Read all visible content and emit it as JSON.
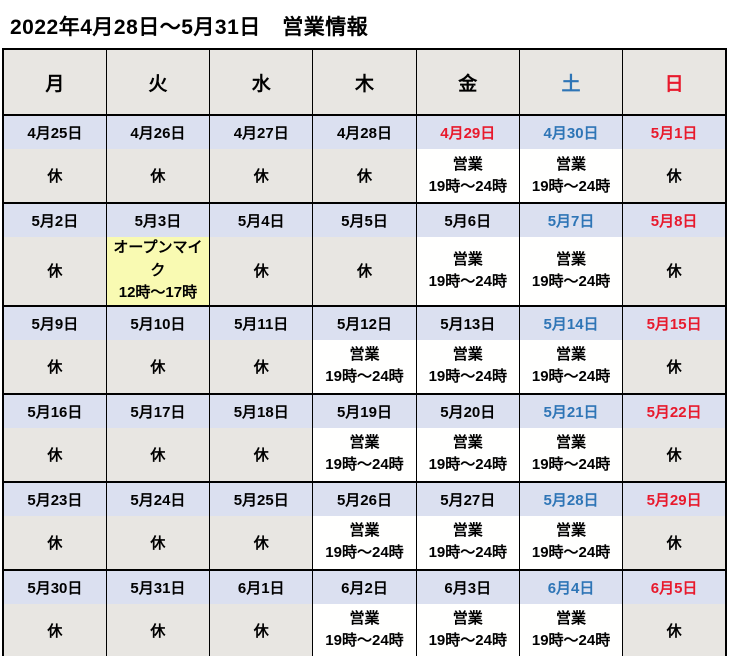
{
  "title": "2022年4月28日～5月31日　営業情報",
  "colors": {
    "saturday": "#2e75b6",
    "sunday": "#e8192c",
    "weekday": "#000000",
    "header_bg": "#e8e6e2",
    "date_bg": "#dbe0f0",
    "closed_bg": "#e8e6e2",
    "open_bg": "#fffffe",
    "event_bg": "#f9fab2"
  },
  "weekday_header": [
    {
      "label": "月",
      "color": "black"
    },
    {
      "label": "火",
      "color": "black"
    },
    {
      "label": "水",
      "color": "black"
    },
    {
      "label": "木",
      "color": "black"
    },
    {
      "label": "金",
      "color": "black"
    },
    {
      "label": "土",
      "color": "blue"
    },
    {
      "label": "日",
      "color": "red"
    }
  ],
  "status_legend": {
    "closed": "休",
    "open": "営業 19時～24時",
    "event": "オープンマイク 12時～17時"
  },
  "weeks": [
    {
      "days": [
        {
          "date": "4月25日",
          "date_color": "black",
          "status": "closed",
          "lines": [
            "休"
          ]
        },
        {
          "date": "4月26日",
          "date_color": "black",
          "status": "closed",
          "lines": [
            "休"
          ]
        },
        {
          "date": "4月27日",
          "date_color": "black",
          "status": "closed",
          "lines": [
            "休"
          ]
        },
        {
          "date": "4月28日",
          "date_color": "black",
          "status": "closed",
          "lines": [
            "休"
          ]
        },
        {
          "date": "4月29日",
          "date_color": "red",
          "status": "open",
          "lines": [
            "営業",
            "19時～24時"
          ]
        },
        {
          "date": "4月30日",
          "date_color": "blue",
          "status": "open",
          "lines": [
            "営業",
            "19時～24時"
          ]
        },
        {
          "date": "5月1日",
          "date_color": "red",
          "status": "closed",
          "lines": [
            "休"
          ]
        }
      ]
    },
    {
      "days": [
        {
          "date": "5月2日",
          "date_color": "black",
          "status": "closed",
          "lines": [
            "休"
          ]
        },
        {
          "date": "5月3日",
          "date_color": "black",
          "status": "event",
          "lines": [
            "オープンマイク",
            "12時～17時"
          ]
        },
        {
          "date": "5月4日",
          "date_color": "black",
          "status": "closed",
          "lines": [
            "休"
          ]
        },
        {
          "date": "5月5日",
          "date_color": "black",
          "status": "closed",
          "lines": [
            "休"
          ]
        },
        {
          "date": "5月6日",
          "date_color": "black",
          "status": "open",
          "lines": [
            "営業",
            "19時～24時"
          ]
        },
        {
          "date": "5月7日",
          "date_color": "blue",
          "status": "open",
          "lines": [
            "営業",
            "19時～24時"
          ]
        },
        {
          "date": "5月8日",
          "date_color": "red",
          "status": "closed",
          "lines": [
            "休"
          ]
        }
      ]
    },
    {
      "days": [
        {
          "date": "5月9日",
          "date_color": "black",
          "status": "closed",
          "lines": [
            "休"
          ]
        },
        {
          "date": "5月10日",
          "date_color": "black",
          "status": "closed",
          "lines": [
            "休"
          ]
        },
        {
          "date": "5月11日",
          "date_color": "black",
          "status": "closed",
          "lines": [
            "休"
          ]
        },
        {
          "date": "5月12日",
          "date_color": "black",
          "status": "open",
          "lines": [
            "営業",
            "19時～24時"
          ]
        },
        {
          "date": "5月13日",
          "date_color": "black",
          "status": "open",
          "lines": [
            "営業",
            "19時～24時"
          ]
        },
        {
          "date": "5月14日",
          "date_color": "blue",
          "status": "open",
          "lines": [
            "営業",
            "19時～24時"
          ]
        },
        {
          "date": "5月15日",
          "date_color": "red",
          "status": "closed",
          "lines": [
            "休"
          ]
        }
      ]
    },
    {
      "days": [
        {
          "date": "5月16日",
          "date_color": "black",
          "status": "closed",
          "lines": [
            "休"
          ]
        },
        {
          "date": "5月17日",
          "date_color": "black",
          "status": "closed",
          "lines": [
            "休"
          ]
        },
        {
          "date": "5月18日",
          "date_color": "black",
          "status": "closed",
          "lines": [
            "休"
          ]
        },
        {
          "date": "5月19日",
          "date_color": "black",
          "status": "open",
          "lines": [
            "営業",
            "19時～24時"
          ]
        },
        {
          "date": "5月20日",
          "date_color": "black",
          "status": "open",
          "lines": [
            "営業",
            "19時～24時"
          ]
        },
        {
          "date": "5月21日",
          "date_color": "blue",
          "status": "open",
          "lines": [
            "営業",
            "19時～24時"
          ]
        },
        {
          "date": "5月22日",
          "date_color": "red",
          "status": "closed",
          "lines": [
            "休"
          ]
        }
      ]
    },
    {
      "days": [
        {
          "date": "5月23日",
          "date_color": "black",
          "status": "closed",
          "lines": [
            "休"
          ]
        },
        {
          "date": "5月24日",
          "date_color": "black",
          "status": "closed",
          "lines": [
            "休"
          ]
        },
        {
          "date": "5月25日",
          "date_color": "black",
          "status": "closed",
          "lines": [
            "休"
          ]
        },
        {
          "date": "5月26日",
          "date_color": "black",
          "status": "open",
          "lines": [
            "営業",
            "19時～24時"
          ]
        },
        {
          "date": "5月27日",
          "date_color": "black",
          "status": "open",
          "lines": [
            "営業",
            "19時～24時"
          ]
        },
        {
          "date": "5月28日",
          "date_color": "blue",
          "status": "open",
          "lines": [
            "営業",
            "19時～24時"
          ]
        },
        {
          "date": "5月29日",
          "date_color": "red",
          "status": "closed",
          "lines": [
            "休"
          ]
        }
      ]
    },
    {
      "days": [
        {
          "date": "5月30日",
          "date_color": "black",
          "status": "closed",
          "lines": [
            "休"
          ]
        },
        {
          "date": "5月31日",
          "date_color": "black",
          "status": "closed",
          "lines": [
            "休"
          ]
        },
        {
          "date": "6月1日",
          "date_color": "black",
          "status": "closed",
          "lines": [
            "休"
          ]
        },
        {
          "date": "6月2日",
          "date_color": "black",
          "status": "open",
          "lines": [
            "営業",
            "19時～24時"
          ]
        },
        {
          "date": "6月3日",
          "date_color": "black",
          "status": "open",
          "lines": [
            "営業",
            "19時～24時"
          ]
        },
        {
          "date": "6月4日",
          "date_color": "blue",
          "status": "open",
          "lines": [
            "営業",
            "19時～24時"
          ]
        },
        {
          "date": "6月5日",
          "date_color": "red",
          "status": "closed",
          "lines": [
            "休"
          ]
        }
      ]
    }
  ]
}
